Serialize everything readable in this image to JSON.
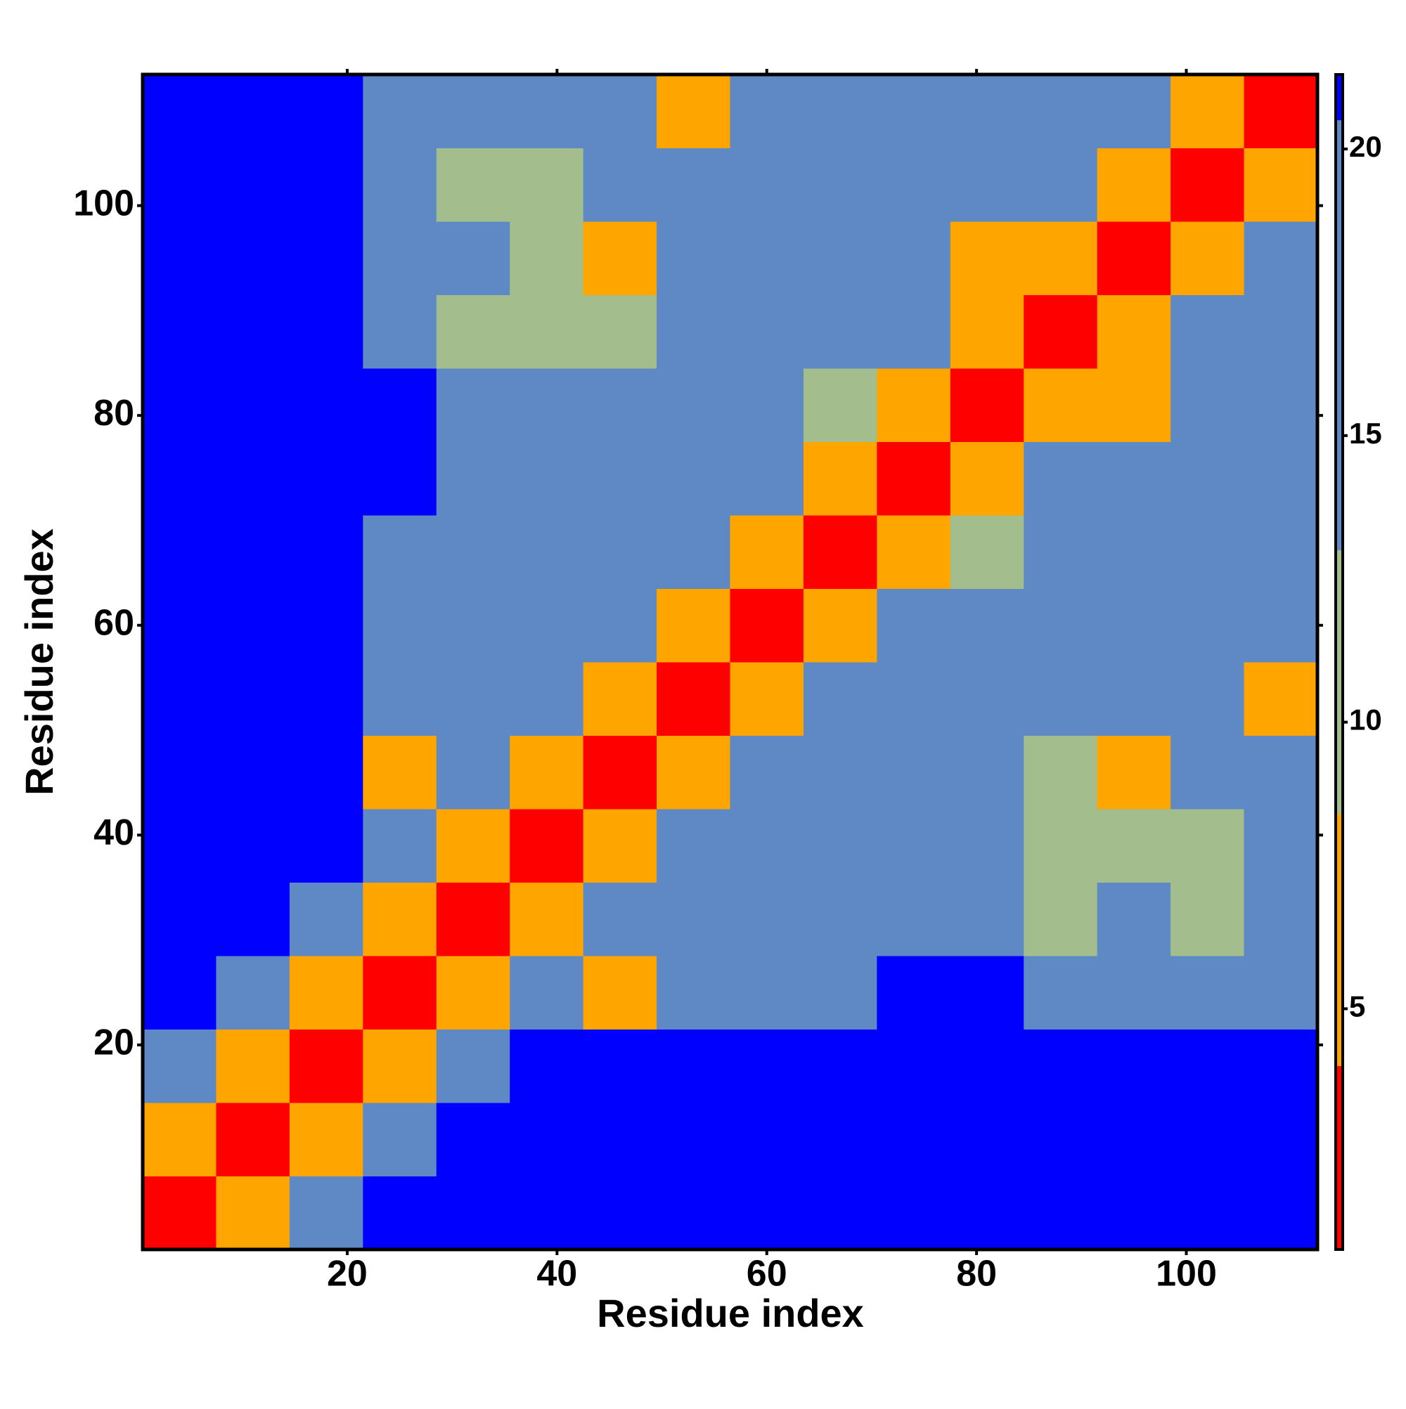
{
  "chart_data": {
    "type": "heatmap",
    "xlabel": "Residue index",
    "ylabel": "Residue index",
    "x": [
      4,
      11,
      18,
      25,
      32,
      39,
      46,
      53,
      60,
      67,
      74,
      81,
      88,
      95,
      102,
      109
    ],
    "y": [
      4,
      11,
      18,
      25,
      32,
      39,
      46,
      53,
      60,
      67,
      74,
      81,
      88,
      95,
      102,
      109
    ],
    "z": [
      [
        3,
        8,
        14,
        21,
        21,
        21,
        21,
        21,
        21,
        21,
        21,
        21,
        21,
        21,
        21,
        21
      ],
      [
        8,
        3,
        8,
        16,
        21,
        21,
        21,
        21,
        21,
        21,
        21,
        21,
        21,
        21,
        21,
        21
      ],
      [
        14,
        8,
        3,
        8,
        18,
        21,
        21,
        21,
        21,
        21,
        21,
        21,
        21,
        21,
        21,
        21
      ],
      [
        21,
        16,
        8,
        3,
        8,
        17,
        8,
        18,
        18,
        18,
        21,
        21,
        15,
        14,
        16,
        18
      ],
      [
        21,
        21,
        18,
        8,
        3,
        8,
        15,
        19,
        17,
        16,
        17,
        13,
        12,
        13,
        12,
        16
      ],
      [
        21,
        21,
        21,
        17,
        8,
        3,
        7,
        15,
        16,
        14,
        16,
        13,
        11,
        9,
        9,
        14
      ],
      [
        21,
        21,
        21,
        8,
        15,
        7,
        3,
        7,
        14,
        16,
        17,
        14,
        9,
        8,
        15,
        16
      ],
      [
        21,
        21,
        21,
        18,
        19,
        15,
        7,
        3,
        7,
        19,
        18,
        16,
        16,
        18,
        13,
        8
      ],
      [
        21,
        21,
        21,
        18,
        17,
        16,
        14,
        7,
        3,
        6,
        14,
        16,
        17,
        18,
        19,
        14
      ],
      [
        21,
        21,
        21,
        18,
        16,
        14,
        16,
        19,
        6,
        3,
        7,
        11,
        17,
        19,
        19,
        15
      ],
      [
        21,
        21,
        21,
        21,
        17,
        16,
        17,
        18,
        14,
        7,
        3,
        7,
        14,
        16,
        17,
        15
      ],
      [
        21,
        21,
        21,
        21,
        13,
        13,
        14,
        16,
        16,
        11,
        7,
        3,
        7,
        8,
        16,
        16
      ],
      [
        21,
        21,
        21,
        15,
        12,
        11,
        9,
        16,
        17,
        17,
        14,
        7,
        3,
        7,
        15,
        17
      ],
      [
        21,
        21,
        21,
        14,
        13,
        9,
        8,
        18,
        18,
        19,
        16,
        8,
        7,
        3,
        8,
        14
      ],
      [
        21,
        21,
        21,
        16,
        12,
        9,
        15,
        13,
        19,
        19,
        17,
        16,
        15,
        8,
        3,
        7
      ],
      [
        21,
        21,
        21,
        18,
        16,
        14,
        16,
        8,
        14,
        15,
        15,
        16,
        17,
        14,
        7,
        3
      ]
    ],
    "xlim": [
      0.5,
      112.5
    ],
    "ylim": [
      0.5,
      112.5
    ],
    "xticks": [
      20,
      40,
      60,
      80,
      100
    ],
    "yticks": [
      20,
      40,
      60,
      80,
      100
    ],
    "color_bins": {
      "edges": [
        0.8,
        4,
        8.4,
        13,
        20.5,
        21.3
      ],
      "colors": [
        "#ff0000",
        "#ffa500",
        "#a3be8c",
        "#5f89c4",
        "#0000ff"
      ]
    },
    "colorbar_ticks": [
      5,
      10,
      15,
      20
    ]
  }
}
